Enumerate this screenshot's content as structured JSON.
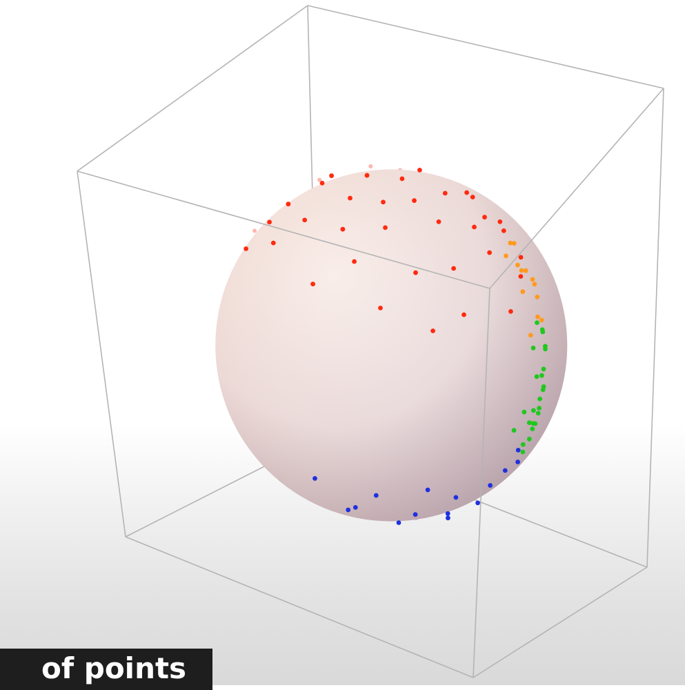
{
  "caption": {
    "text": "of points"
  },
  "colors": {
    "background": "#ffffff",
    "box_edge": "#b4b4b4",
    "sphere_highlight": "#fbf3ee",
    "sphere_mid": "#ead8d4",
    "sphere_shadow": "#b09090",
    "caption_bg": "#1e1e1e"
  },
  "chart_data": {
    "type": "scatter",
    "title": "",
    "xlabel": "",
    "ylabel": "",
    "zlabel": "",
    "projection": "3d",
    "grid": false,
    "legend": "none",
    "axis_ranges": {
      "x": [
        -1.3,
        1.3
      ],
      "y": [
        -1.3,
        1.3
      ],
      "z": [
        -1.3,
        1.3
      ]
    },
    "surface": {
      "shape": "sphere",
      "center": [
        0,
        0,
        0
      ],
      "radius": 1
    },
    "series": [
      {
        "color": "#ff2a10",
        "points": [
          [
            -0.62,
            -0.31,
            0.72
          ],
          [
            -0.55,
            0.18,
            0.81
          ],
          [
            -0.4,
            -0.05,
            0.92
          ],
          [
            -0.28,
            0.33,
            0.9
          ],
          [
            -0.12,
            -0.22,
            0.97
          ],
          [
            0.05,
            0.12,
            0.99
          ],
          [
            0.18,
            -0.35,
            0.92
          ],
          [
            0.3,
            0.2,
            0.93
          ],
          [
            0.41,
            -0.1,
            0.91
          ],
          [
            0.52,
            0.3,
            0.8
          ],
          [
            0.6,
            -0.28,
            0.75
          ],
          [
            0.68,
            0.05,
            0.73
          ],
          [
            -0.7,
            0.4,
            0.59
          ],
          [
            -0.48,
            -0.52,
            0.71
          ],
          [
            -0.2,
            0.55,
            0.81
          ],
          [
            0.1,
            -0.6,
            0.79
          ],
          [
            0.25,
            0.58,
            0.77
          ],
          [
            0.44,
            -0.47,
            0.76
          ],
          [
            -0.33,
            -0.4,
            0.85
          ],
          [
            0.02,
            0.4,
            0.92
          ],
          [
            -0.85,
            -0.1,
            0.52
          ],
          [
            -0.78,
            0.3,
            0.55
          ],
          [
            -0.15,
            0.05,
            0.99
          ],
          [
            0.22,
            -0.05,
            0.97
          ],
          [
            0.36,
            0.45,
            0.82
          ],
          [
            -0.05,
            -0.45,
            0.89
          ],
          [
            0.55,
            0.1,
            0.83
          ],
          [
            -0.6,
            0.6,
            0.53
          ],
          [
            0.73,
            -0.4,
            0.55
          ],
          [
            0.15,
            0.8,
            0.58
          ],
          [
            -0.25,
            0.78,
            0.57
          ],
          [
            0.8,
            0.25,
            0.54
          ],
          [
            -0.9,
            0.05,
            0.43
          ],
          [
            0.45,
            0.7,
            0.55
          ],
          [
            0.62,
            -0.6,
            0.5
          ],
          [
            -0.42,
            0.1,
            0.9
          ],
          [
            0.08,
            -0.18,
            0.98
          ],
          [
            -0.05,
            0.7,
            0.71
          ],
          [
            0.33,
            -0.72,
            0.61
          ],
          [
            -0.75,
            -0.38,
            0.54
          ],
          [
            0.88,
            -0.05,
            0.47
          ],
          [
            -0.1,
            -0.75,
            0.65
          ],
          [
            0.5,
            0.55,
            0.67
          ],
          [
            -0.55,
            -0.2,
            0.81
          ],
          [
            0.7,
            0.45,
            0.55
          ]
        ]
      },
      {
        "color": "#ff9a20",
        "points": [
          [
            0.82,
            0.45,
            0.35
          ],
          [
            0.75,
            0.55,
            0.37
          ],
          [
            0.9,
            0.3,
            0.31
          ],
          [
            0.6,
            0.72,
            0.35
          ],
          [
            0.7,
            0.62,
            0.36
          ],
          [
            0.85,
            0.18,
            0.49
          ],
          [
            0.5,
            0.8,
            0.33
          ],
          [
            0.95,
            0.1,
            0.29
          ],
          [
            0.4,
            0.85,
            0.34
          ],
          [
            0.78,
            0.3,
            0.55
          ],
          [
            0.65,
            0.4,
            0.64
          ],
          [
            0.55,
            0.65,
            0.52
          ],
          [
            0.88,
            0.4,
            0.25
          ],
          [
            0.72,
            0.2,
            0.66
          ]
        ]
      },
      {
        "color": "#20c81e",
        "points": [
          [
            0.95,
            0.25,
            -0.19
          ],
          [
            0.92,
            0.38,
            0.1
          ],
          [
            0.98,
            0.05,
            -0.2
          ],
          [
            0.88,
            0.45,
            -0.15
          ],
          [
            0.97,
            0.1,
            0.22
          ],
          [
            0.93,
            0.2,
            -0.3
          ],
          [
            0.85,
            0.52,
            0.05
          ],
          [
            0.99,
            -0.05,
            -0.1
          ],
          [
            0.9,
            0.3,
            -0.31
          ],
          [
            0.8,
            0.58,
            -0.15
          ],
          [
            0.96,
            0.28,
            0.03
          ],
          [
            0.87,
            0.4,
            -0.29
          ],
          [
            0.94,
            0.05,
            -0.34
          ],
          [
            0.78,
            0.62,
            0.08
          ],
          [
            0.91,
            0.35,
            0.22
          ],
          [
            0.83,
            0.5,
            -0.25
          ],
          [
            0.97,
            -0.15,
            -0.18
          ],
          [
            0.89,
            0.15,
            -0.43
          ],
          [
            0.76,
            0.55,
            -0.35
          ],
          [
            0.92,
            0.25,
            0.3
          ],
          [
            0.86,
            0.3,
            -0.41
          ],
          [
            0.95,
            0.3,
            -0.1
          ],
          [
            0.81,
            0.45,
            -0.38
          ],
          [
            0.99,
            0.12,
            0.05
          ]
        ]
      },
      {
        "color": "#2030e0",
        "points": [
          [
            -0.6,
            -0.3,
            -0.74
          ],
          [
            -0.45,
            0.2,
            -0.87
          ],
          [
            -0.3,
            -0.1,
            -0.95
          ],
          [
            -0.15,
            0.35,
            -0.92
          ],
          [
            0.0,
            -0.25,
            -0.97
          ],
          [
            0.12,
            0.15,
            -0.98
          ],
          [
            0.25,
            -0.35,
            -0.9
          ],
          [
            0.38,
            0.22,
            -0.9
          ],
          [
            0.48,
            -0.1,
            -0.87
          ],
          [
            0.58,
            0.3,
            -0.76
          ],
          [
            -0.7,
            0.35,
            -0.62
          ],
          [
            -0.5,
            -0.55,
            -0.67
          ],
          [
            -0.22,
            0.58,
            -0.78
          ],
          [
            0.08,
            -0.62,
            -0.78
          ],
          [
            0.28,
            0.6,
            -0.75
          ],
          [
            0.45,
            -0.5,
            -0.74
          ],
          [
            -0.35,
            -0.4,
            -0.85
          ],
          [
            0.02,
            0.42,
            -0.91
          ],
          [
            -0.85,
            -0.08,
            -0.52
          ],
          [
            -0.1,
            0.02,
            -0.99
          ],
          [
            0.2,
            -0.02,
            -0.98
          ],
          [
            0.35,
            0.45,
            -0.82
          ],
          [
            -0.05,
            -0.48,
            -0.88
          ],
          [
            0.62,
            0.05,
            -0.78
          ],
          [
            -0.62,
            0.58,
            -0.53
          ],
          [
            0.7,
            -0.42,
            -0.58
          ],
          [
            0.12,
            0.82,
            -0.56
          ],
          [
            -0.28,
            0.8,
            -0.53
          ],
          [
            0.82,
            0.22,
            -0.53
          ],
          [
            -0.92,
            0.02,
            -0.39
          ],
          [
            0.48,
            0.72,
            -0.5
          ],
          [
            0.6,
            -0.62,
            -0.5
          ],
          [
            -0.42,
            0.12,
            -0.9
          ],
          [
            0.1,
            -0.2,
            -0.97
          ],
          [
            -0.08,
            0.72,
            -0.69
          ],
          [
            0.3,
            -0.75,
            -0.59
          ],
          [
            -0.78,
            -0.4,
            -0.48
          ],
          [
            0.88,
            -0.08,
            -0.47
          ],
          [
            -0.12,
            -0.78,
            -0.61
          ],
          [
            0.52,
            0.55,
            -0.65
          ],
          [
            -0.55,
            -0.18,
            -0.82
          ],
          [
            0.72,
            0.42,
            -0.55
          ],
          [
            -0.2,
            0.2,
            -0.96
          ],
          [
            0.4,
            0.05,
            -0.91
          ],
          [
            0.15,
            0.38,
            -0.91
          ]
        ]
      }
    ]
  }
}
